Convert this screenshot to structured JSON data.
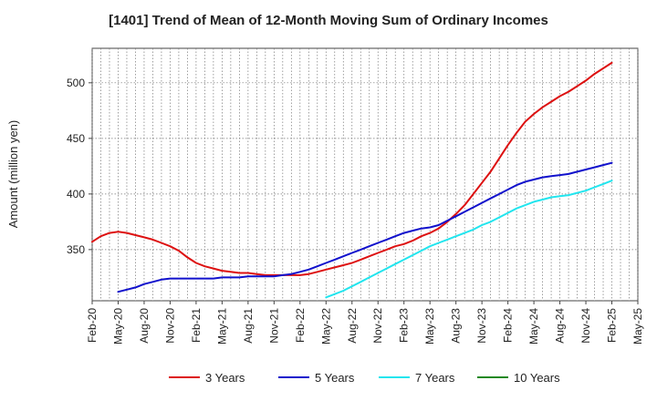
{
  "chart_data": {
    "type": "line",
    "title": "[1401]  Trend of Mean of 12-Month Moving Sum of Ordinary Incomes",
    "xlabel": "",
    "ylabel": "Amount (million yen)",
    "ylim": [
      304,
      531
    ],
    "yticks": [
      350,
      400,
      450,
      500
    ],
    "grid": true,
    "legend_position": "bottom",
    "categories": [
      "Feb-20",
      "May-20",
      "Aug-20",
      "Nov-20",
      "Feb-21",
      "May-21",
      "Aug-21",
      "Nov-21",
      "Feb-22",
      "May-22",
      "Aug-22",
      "Nov-22",
      "Feb-23",
      "May-23",
      "Aug-23",
      "Nov-23",
      "Feb-24",
      "May-24",
      "Aug-24",
      "Nov-24",
      "Feb-25",
      "May-25"
    ],
    "series": [
      {
        "name": "3 Years",
        "color": "#dd1111",
        "x": [
          "Feb-20",
          "Mar-20",
          "Apr-20",
          "May-20",
          "Jun-20",
          "Jul-20",
          "Aug-20",
          "Sep-20",
          "Oct-20",
          "Nov-20",
          "Dec-20",
          "Jan-21",
          "Feb-21",
          "Mar-21",
          "Apr-21",
          "May-21",
          "Jun-21",
          "Jul-21",
          "Aug-21",
          "Sep-21",
          "Oct-21",
          "Nov-21",
          "Dec-21",
          "Jan-22",
          "Feb-22",
          "Mar-22",
          "Apr-22",
          "May-22",
          "Jun-22",
          "Jul-22",
          "Aug-22",
          "Sep-22",
          "Oct-22",
          "Nov-22",
          "Dec-22",
          "Jan-23",
          "Feb-23",
          "Mar-23",
          "Apr-23",
          "May-23",
          "Jun-23",
          "Jul-23",
          "Aug-23",
          "Sep-23",
          "Oct-23",
          "Nov-23",
          "Dec-23",
          "Jan-24",
          "Feb-24",
          "Mar-24",
          "Apr-24",
          "May-24",
          "Jun-24",
          "Jul-24",
          "Aug-24",
          "Sep-24",
          "Oct-24",
          "Nov-24",
          "Dec-24",
          "Jan-25",
          "Feb-25"
        ],
        "values": [
          357,
          362,
          365,
          366,
          365,
          363,
          361,
          359,
          356,
          353,
          349,
          343,
          338,
          335,
          333,
          331,
          330,
          329,
          329,
          328,
          327,
          327,
          327,
          327,
          327,
          328,
          330,
          332,
          334,
          336,
          338,
          341,
          344,
          347,
          350,
          353,
          355,
          358,
          362,
          365,
          369,
          375,
          382,
          390,
          400,
          410,
          420,
          432,
          444,
          455,
          465,
          472,
          478,
          483,
          488,
          492,
          497,
          502,
          508,
          513,
          518
        ]
      },
      {
        "name": "5 Years",
        "color": "#1111cc",
        "x": [
          "May-20",
          "Jun-20",
          "Jul-20",
          "Aug-20",
          "Sep-20",
          "Oct-20",
          "Nov-20",
          "Dec-20",
          "Jan-21",
          "Feb-21",
          "Mar-21",
          "Apr-21",
          "May-21",
          "Jun-21",
          "Jul-21",
          "Aug-21",
          "Sep-21",
          "Oct-21",
          "Nov-21",
          "Dec-21",
          "Jan-22",
          "Feb-22",
          "Mar-22",
          "Apr-22",
          "May-22",
          "Jun-22",
          "Jul-22",
          "Aug-22",
          "Sep-22",
          "Oct-22",
          "Nov-22",
          "Dec-22",
          "Jan-23",
          "Feb-23",
          "Mar-23",
          "Apr-23",
          "May-23",
          "Jun-23",
          "Jul-23",
          "Aug-23",
          "Sep-23",
          "Oct-23",
          "Nov-23",
          "Dec-23",
          "Jan-24",
          "Feb-24",
          "Mar-24",
          "Apr-24",
          "May-24",
          "Jun-24",
          "Jul-24",
          "Aug-24",
          "Sep-24",
          "Oct-24",
          "Nov-24",
          "Dec-24",
          "Jan-25",
          "Feb-25"
        ],
        "values": [
          312,
          314,
          316,
          319,
          321,
          323,
          324,
          324,
          324,
          324,
          324,
          324,
          325,
          325,
          325,
          326,
          326,
          326,
          326,
          327,
          328,
          330,
          332,
          335,
          338,
          341,
          344,
          347,
          350,
          353,
          356,
          359,
          362,
          365,
          367,
          369,
          370,
          372,
          376,
          380,
          384,
          388,
          392,
          396,
          400,
          404,
          408,
          411,
          413,
          415,
          416,
          417,
          418,
          420,
          422,
          424,
          426,
          428
        ]
      },
      {
        "name": "7 Years",
        "color": "#22e5ee",
        "x": [
          "May-22",
          "Jun-22",
          "Jul-22",
          "Aug-22",
          "Sep-22",
          "Oct-22",
          "Nov-22",
          "Dec-22",
          "Jan-23",
          "Feb-23",
          "Mar-23",
          "Apr-23",
          "May-23",
          "Jun-23",
          "Jul-23",
          "Aug-23",
          "Sep-23",
          "Oct-23",
          "Nov-23",
          "Dec-23",
          "Jan-24",
          "Feb-24",
          "Mar-24",
          "Apr-24",
          "May-24",
          "Jun-24",
          "Jul-24",
          "Aug-24",
          "Sep-24",
          "Oct-24",
          "Nov-24",
          "Dec-24",
          "Jan-25",
          "Feb-25"
        ],
        "values": [
          307,
          310,
          313,
          317,
          321,
          325,
          329,
          333,
          337,
          341,
          345,
          349,
          353,
          356,
          359,
          362,
          365,
          368,
          372,
          375,
          379,
          383,
          387,
          390,
          393,
          395,
          397,
          398,
          399,
          401,
          403,
          406,
          409,
          412
        ]
      },
      {
        "name": "10 Years",
        "color": "#228822",
        "x": [],
        "values": []
      }
    ]
  }
}
